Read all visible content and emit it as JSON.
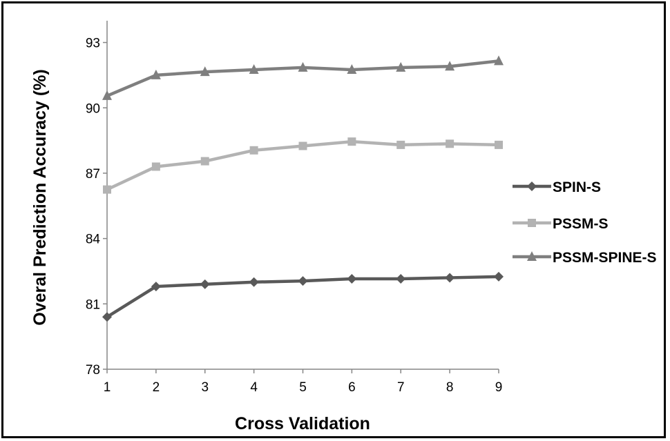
{
  "chart_data": {
    "type": "line",
    "title": "",
    "xlabel": "Cross Validation",
    "ylabel": "Overal Prediction Accuracy (%)",
    "x": [
      1,
      2,
      3,
      4,
      5,
      6,
      7,
      8,
      9
    ],
    "xticks": [
      "1",
      "2",
      "3",
      "4",
      "5",
      "6",
      "7",
      "8",
      "9"
    ],
    "yticks": [
      "78",
      "81",
      "84",
      "87",
      "90",
      "93"
    ],
    "ylim": [
      78,
      94
    ],
    "xlim": [
      1,
      9
    ],
    "grid": false,
    "legend_position": "right",
    "series": [
      {
        "name": "SPIN-S",
        "marker": "diamond",
        "color": "#595959",
        "values": [
          80.4,
          81.8,
          81.9,
          82.0,
          82.05,
          82.15,
          82.15,
          82.2,
          82.25
        ]
      },
      {
        "name": "PSSM-S",
        "marker": "square",
        "color": "#b3b3b3",
        "values": [
          86.25,
          87.3,
          87.55,
          88.05,
          88.25,
          88.45,
          88.3,
          88.35,
          88.3
        ]
      },
      {
        "name": "PSSM-SPINE-S",
        "marker": "triangle",
        "color": "#7f7f7f",
        "values": [
          90.55,
          91.5,
          91.65,
          91.75,
          91.85,
          91.75,
          91.85,
          91.9,
          92.15
        ]
      }
    ]
  }
}
